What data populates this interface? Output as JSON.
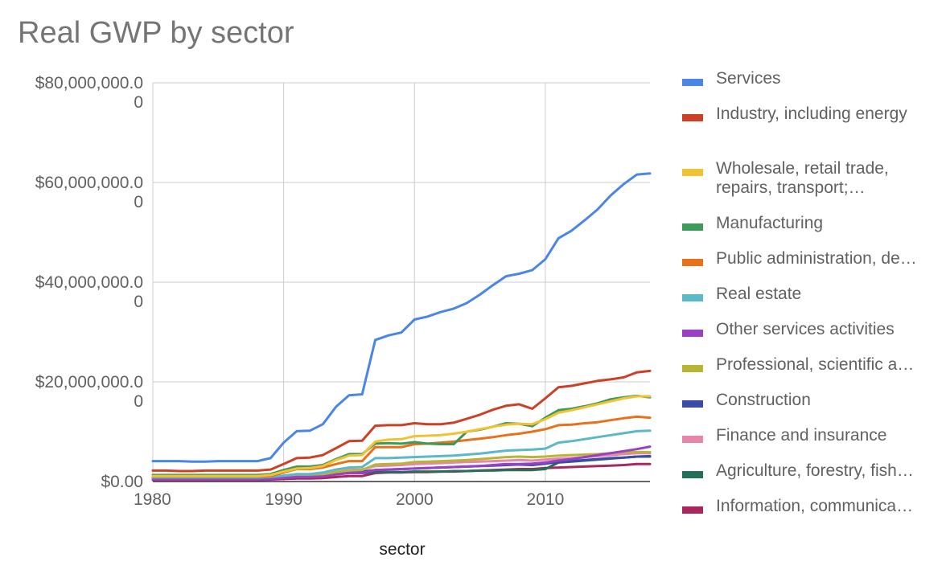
{
  "chart_data": {
    "type": "line",
    "title": "Real GWP by sector",
    "xlabel": "sector",
    "ylabel": "",
    "xlim": [
      1980,
      2018
    ],
    "ylim": [
      0,
      80000000
    ],
    "x_ticks": [
      "1980",
      "1990",
      "2000",
      "2010"
    ],
    "y_ticks": [
      {
        "lines": [
          "$0.00"
        ],
        "value": 0
      },
      {
        "lines": [
          "$20,000,000.0",
          "0"
        ],
        "value": 20000000
      },
      {
        "lines": [
          "$40,000,000.0",
          "0"
        ],
        "value": 40000000
      },
      {
        "lines": [
          "$60,000,000.0",
          "0"
        ],
        "value": 60000000
      },
      {
        "lines": [
          "$80,000,000.0",
          "0"
        ],
        "value": 80000000
      }
    ],
    "grid": true,
    "legend_position": "right",
    "x": [
      1980,
      1981,
      1982,
      1983,
      1984,
      1985,
      1986,
      1987,
      1988,
      1989,
      1990,
      1991,
      1992,
      1993,
      1994,
      1995,
      1996,
      1997,
      1998,
      1999,
      2000,
      2001,
      2002,
      2003,
      2004,
      2005,
      2006,
      2007,
      2008,
      2009,
      2010,
      2011,
      2012,
      2013,
      2014,
      2015,
      2016,
      2017,
      2018
    ],
    "series": [
      {
        "name": "Services",
        "color": "#4a86e8",
        "values": [
          4100000,
          4100000,
          4100000,
          4000000,
          4000000,
          4100000,
          4100000,
          4100000,
          4100000,
          4700000,
          7800000,
          10100000,
          10200000,
          11500000,
          15000000,
          17300000,
          17500000,
          28400000,
          29300000,
          29900000,
          32500000,
          33100000,
          34000000,
          34700000,
          35800000,
          37500000,
          39400000,
          41200000,
          41700000,
          42400000,
          44600000,
          48800000,
          50300000,
          52400000,
          54600000,
          57400000,
          59700000,
          61600000,
          61800000
        ]
      },
      {
        "name": "Industry, including energy",
        "color": "#cc4125",
        "values": [
          2200000,
          2200000,
          2100000,
          2100000,
          2200000,
          2200000,
          2200000,
          2200000,
          2200000,
          2400000,
          3500000,
          4700000,
          4800000,
          5300000,
          6700000,
          8100000,
          8200000,
          11200000,
          11300000,
          11300000,
          11700000,
          11500000,
          11500000,
          11800000,
          12600000,
          13400000,
          14400000,
          15200000,
          15500000,
          14600000,
          16700000,
          18900000,
          19200000,
          19700000,
          20200000,
          20500000,
          20900000,
          21900000,
          22200000
        ]
      },
      {
        "name": "Wholesale, retail trade, repairs, transport; accommodation",
        "color": "#f1c232",
        "values": [
          1100000,
          1100000,
          1100000,
          1100000,
          1100000,
          1100000,
          1100000,
          1100000,
          1100000,
          1300000,
          2000000,
          2600000,
          2700000,
          3100000,
          4300000,
          5200000,
          5300000,
          8000000,
          8400000,
          8500000,
          9100000,
          9200000,
          9300000,
          9600000,
          10000000,
          10500000,
          11000000,
          11400000,
          11600000,
          11500000,
          12500000,
          13800000,
          14300000,
          14900000,
          15500000,
          16100000,
          16700000,
          17100000,
          17100000
        ]
      },
      {
        "name": "Manufacturing",
        "color": "#3d9a5b",
        "values": [
          1300000,
          1300000,
          1300000,
          1300000,
          1300000,
          1300000,
          1300000,
          1300000,
          1300000,
          1500000,
          2300000,
          3000000,
          3000000,
          3300000,
          4500000,
          5500000,
          5500000,
          7600000,
          7700000,
          7600000,
          7900000,
          7600000,
          7500000,
          7500000,
          10000000,
          10400000,
          11000000,
          11700000,
          11600000,
          11100000,
          12800000,
          14300000,
          14600000,
          15100000,
          15700000,
          16500000,
          16900000,
          17200000,
          16900000
        ]
      },
      {
        "name": "Public administration, defence, education, health",
        "color": "#e8711a",
        "values": [
          1000000,
          1000000,
          1000000,
          1000000,
          1000000,
          1000000,
          1000000,
          1000000,
          1000000,
          1100000,
          1800000,
          2500000,
          2500000,
          2800000,
          3500000,
          4100000,
          4100000,
          6900000,
          6900000,
          6900000,
          7500000,
          7600000,
          7800000,
          8000000,
          8300000,
          8600000,
          8900000,
          9300000,
          9600000,
          10000000,
          10500000,
          11300000,
          11400000,
          11700000,
          11900000,
          12300000,
          12700000,
          13000000,
          12800000
        ]
      },
      {
        "name": "Real estate",
        "color": "#5bb8c8",
        "values": [
          800000,
          800000,
          800000,
          800000,
          800000,
          800000,
          800000,
          800000,
          800000,
          900000,
          1200000,
          1500000,
          1500000,
          1800000,
          2400000,
          2800000,
          2900000,
          4700000,
          4700000,
          4800000,
          4900000,
          5000000,
          5100000,
          5200000,
          5400000,
          5600000,
          5900000,
          6200000,
          6300000,
          6400000,
          6600000,
          7800000,
          8100000,
          8500000,
          8900000,
          9300000,
          9700000,
          10100000,
          10200000
        ]
      },
      {
        "name": "Other services activities",
        "color": "#9b3fc7",
        "values": [
          400000,
          400000,
          400000,
          400000,
          400000,
          400000,
          400000,
          400000,
          400000,
          500000,
          700000,
          900000,
          900000,
          1000000,
          1400000,
          1700000,
          1700000,
          2300000,
          2400000,
          2500000,
          2600000,
          2700000,
          2800000,
          2900000,
          3000000,
          3100000,
          3300000,
          3500000,
          3500000,
          3600000,
          3800000,
          4200000,
          4500000,
          4900000,
          5300000,
          5700000,
          6100000,
          6500000,
          7000000
        ]
      },
      {
        "name": "Professional, scientific and technical activities",
        "color": "#b7b634",
        "values": [
          500000,
          500000,
          500000,
          500000,
          500000,
          500000,
          500000,
          500000,
          500000,
          600000,
          900000,
          1200000,
          1200000,
          1400000,
          1900000,
          2200000,
          2300000,
          3400000,
          3500000,
          3600000,
          3900000,
          4000000,
          4100000,
          4200000,
          4300000,
          4500000,
          4700000,
          4900000,
          5000000,
          4900000,
          5000000,
          5200000,
          5300000,
          5400000,
          5500000,
          5700000,
          5900000,
          5900000,
          5900000
        ]
      },
      {
        "name": "Construction",
        "color": "#3c4aa8",
        "values": [
          600000,
          600000,
          600000,
          600000,
          600000,
          600000,
          600000,
          600000,
          600000,
          700000,
          1000000,
          1300000,
          1300000,
          1400000,
          1800000,
          2000000,
          2000000,
          2300000,
          2400000,
          2500000,
          2600000,
          2700000,
          2800000,
          2900000,
          3000000,
          3100000,
          3200000,
          3300000,
          3400000,
          3300000,
          3600000,
          3900000,
          4100000,
          4300000,
          4500000,
          4700000,
          4800000,
          5000000,
          5100000
        ]
      },
      {
        "name": "Finance and insurance",
        "color": "#e885ab",
        "values": [
          500000,
          500000,
          500000,
          500000,
          500000,
          500000,
          500000,
          500000,
          500000,
          600000,
          900000,
          1200000,
          1200000,
          1400000,
          1900000,
          2300000,
          2400000,
          3100000,
          3200000,
          3300000,
          3500000,
          3600000,
          3700000,
          3800000,
          3900000,
          4000000,
          4100000,
          4200000,
          4300000,
          4200000,
          4400000,
          4600000,
          4700000,
          4900000,
          5100000,
          5300000,
          5500000,
          5700000,
          5700000
        ]
      },
      {
        "name": "Agriculture, forestry, fishing",
        "color": "#256e5a",
        "values": [
          700000,
          700000,
          700000,
          700000,
          700000,
          700000,
          700000,
          700000,
          700000,
          800000,
          1000000,
          1200000,
          1200000,
          1300000,
          1500000,
          1700000,
          1700000,
          1900000,
          1900000,
          1900000,
          2000000,
          2000000,
          2000000,
          2100000,
          2100000,
          2200000,
          2200000,
          2300000,
          2300000,
          2300000,
          2500000,
          3800000,
          4000000,
          4200000,
          4400000,
          4600000,
          4800000,
          5000000,
          5000000
        ]
      },
      {
        "name": "Information, communication",
        "color": "#a8285e",
        "values": [
          300000,
          300000,
          300000,
          300000,
          300000,
          300000,
          300000,
          300000,
          300000,
          400000,
          500000,
          600000,
          600000,
          700000,
          900000,
          1100000,
          1100000,
          1700000,
          1800000,
          1800000,
          1900000,
          1900000,
          2000000,
          2000000,
          2100000,
          2200000,
          2300000,
          2400000,
          2500000,
          2500000,
          2700000,
          2800000,
          2900000,
          3000000,
          3100000,
          3200000,
          3300000,
          3500000,
          3500000
        ]
      }
    ]
  }
}
